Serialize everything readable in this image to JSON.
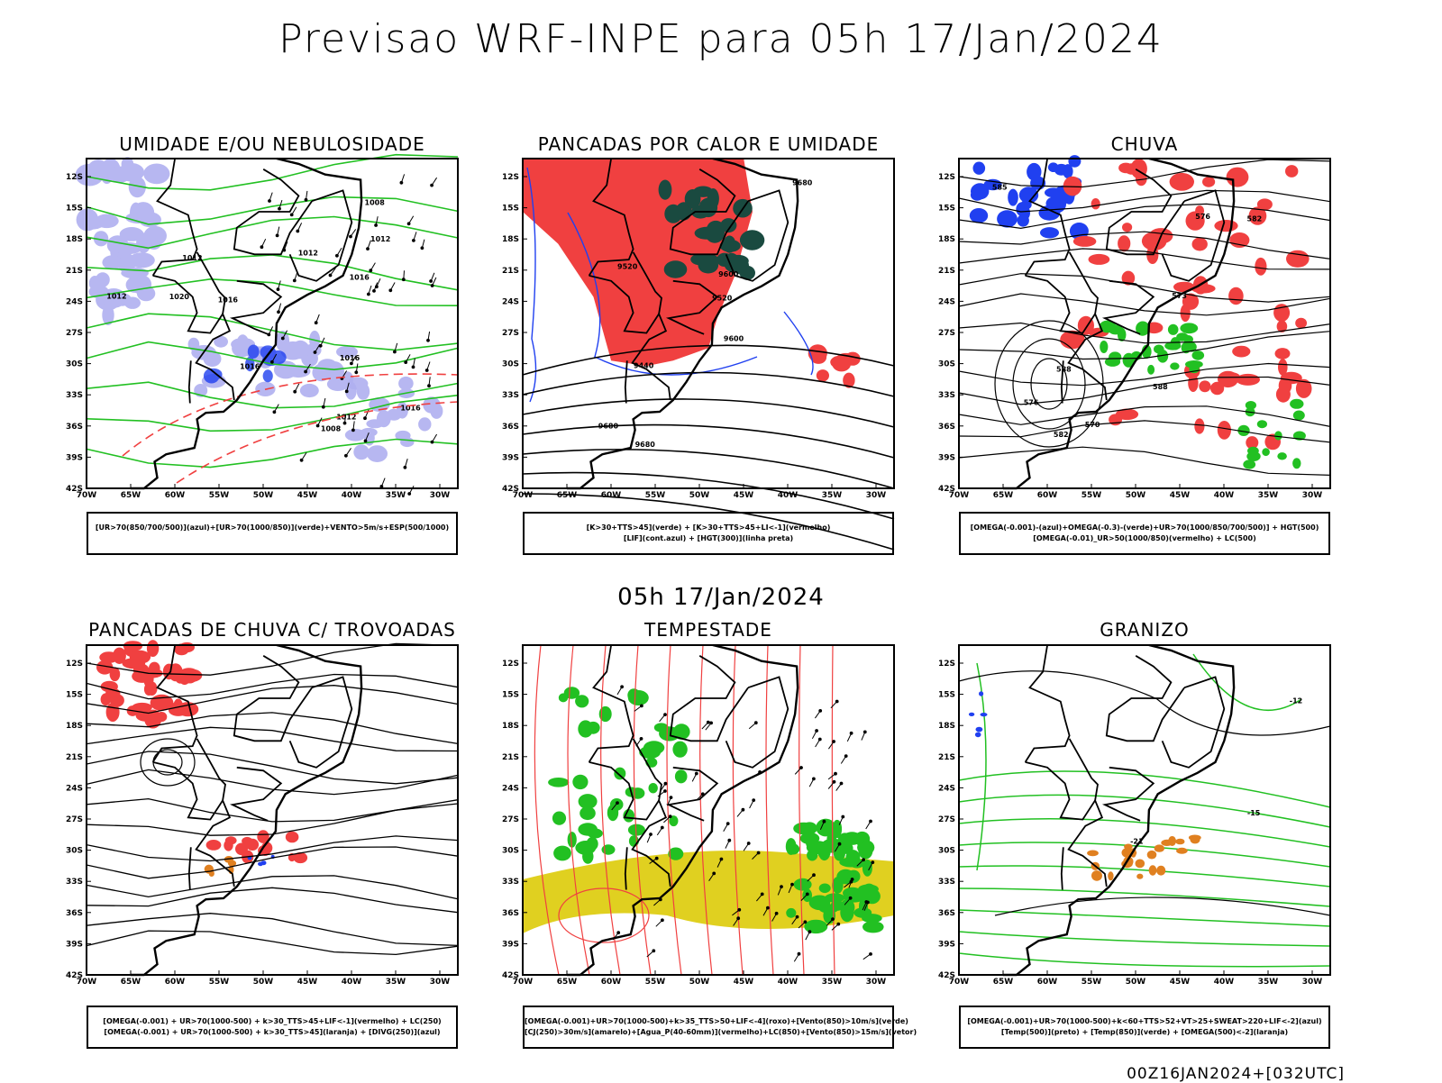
{
  "main_title": "Previsao WRF-INPE  para 05h 17/Jan/2024",
  "mid_date": "05h 17/Jan/2024",
  "footer_stamp": "00Z16JAN2024+[032UTC]",
  "lat_ticks": [
    "12S",
    "15S",
    "18S",
    "21S",
    "24S",
    "27S",
    "30S",
    "33S",
    "36S",
    "39S",
    "42S"
  ],
  "lon_ticks": [
    "70W",
    "65W",
    "60W",
    "55W",
    "50W",
    "45W",
    "40W",
    "35W",
    "30W"
  ],
  "colors": {
    "red": "#f04040",
    "green": "#22c022",
    "blue": "#2040f0",
    "lavender": "#b0b0f0",
    "darkteal": "#1a4a40",
    "yellow": "#e0d020",
    "orange": "#e08020"
  },
  "panels": [
    {
      "title": "UMIDADE E/OU NEBULOSIDADE",
      "legend": [
        "[UR>70(850/700/500)](azul)+[UR>70(1000/850)](verde)+VENTO>5m/s+ESP(500/1000)"
      ]
    },
    {
      "title": "PANCADAS POR CALOR E UMIDADE",
      "legend": [
        "[K>30+TTS>45](verde) + [K>30+TTS>45+LI<-1](vermelho)",
        "[LIF](cont.azul) + [HGT(300)](linha preta)"
      ]
    },
    {
      "title": "CHUVA",
      "legend": [
        "[OMEGA(-0.001)-(azul)+OMEGA(-0.3)-(verde)+UR>70(1000/850/700/500)] + HGT(500)",
        "[OMEGA(-0.01)_UR>50(1000/850)(vermelho) + LC(500)"
      ]
    },
    {
      "title": "PANCADAS DE CHUVA C/ TROVOADAS",
      "legend": [
        "[OMEGA(-0.001) + UR>70(1000-500) + k>30_TTS>45+LIF<-1](vermelho) + LC(250)",
        "[OMEGA(-0.001) + UR>70(1000-500) + k>30_TTS>45](laranja) + [DIVG(250)](azul)"
      ]
    },
    {
      "title": "TEMPESTADE",
      "legend": [
        "[OMEGA(-0.001)+UR>70(1000-500)+k>35_TTS>50+LIF<-4](roxo)+[Vento(850)>10m/s](verde)",
        "[CJ(250)>30m/s](amarelo)+[Agua_P(40-60mm)](vermelho)+LC(850)+[Vento(850)>15m/s](vetor)"
      ]
    },
    {
      "title": "GRANIZO",
      "legend": [
        "[OMEGA(-0.001)+UR>70(1000-500)+k<60+TTS>52+VT>25+SWEAT>220+LIF<-2](azul)",
        "[Temp(500)](preto) + [Temp(850)](verde) + [OMEGA(500)<-2](laranja)"
      ]
    }
  ],
  "contour_labels": {
    "p1": [
      "1012",
      "1016",
      "1016",
      "1020",
      "1012",
      "1012",
      "1008",
      "1012",
      "1016",
      "1016",
      "1012",
      "1008",
      "1016"
    ],
    "p2": [
      "9680",
      "9680",
      "9680",
      "9600",
      "9520",
      "9600",
      "9520",
      "9440"
    ],
    "p3": [
      "588",
      "588",
      "582",
      "576",
      "585",
      "582",
      "576",
      "573",
      "570"
    ],
    "p6": [
      "-12",
      "-15",
      "-21"
    ]
  }
}
